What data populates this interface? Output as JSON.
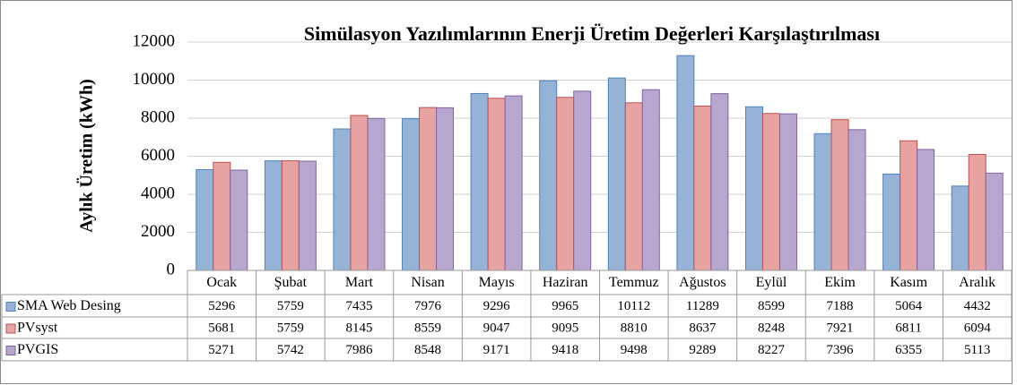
{
  "chart_data": {
    "type": "bar",
    "title": "Simülasyon Yazılımlarının Enerji Üretim Değerleri Karşılaştırılması",
    "y_label": "Aylık Üretim (kWh)",
    "categories": [
      "Ocak",
      "Şubat",
      "Mart",
      "Nisan",
      "Mayıs",
      "Haziran",
      "Temmuz",
      "Ağustos",
      "Eylül",
      "Ekim",
      "Kasım",
      "Aralık"
    ],
    "series": [
      {
        "name": "SMA Web Desing",
        "color": "#95b3d7",
        "values": [
          5296,
          5759,
          7435,
          7976,
          9296,
          9965,
          10112,
          11289,
          8599,
          7188,
          5064,
          4432
        ]
      },
      {
        "name": "PVsyst",
        "color": "#e6a3a2",
        "values": [
          5681,
          5759,
          8145,
          8559,
          9047,
          9095,
          8810,
          8637,
          8248,
          7921,
          6811,
          6094
        ]
      },
      {
        "name": "PVGIS",
        "color": "#b7a6cd",
        "values": [
          5271,
          5742,
          7986,
          8548,
          9171,
          9418,
          9498,
          9289,
          8227,
          7396,
          6355,
          5113
        ]
      }
    ],
    "ylim": [
      0,
      12000
    ],
    "yticks": [
      0,
      2000,
      4000,
      6000,
      8000,
      10000,
      12000
    ],
    "grid": true,
    "data_table": true
  }
}
